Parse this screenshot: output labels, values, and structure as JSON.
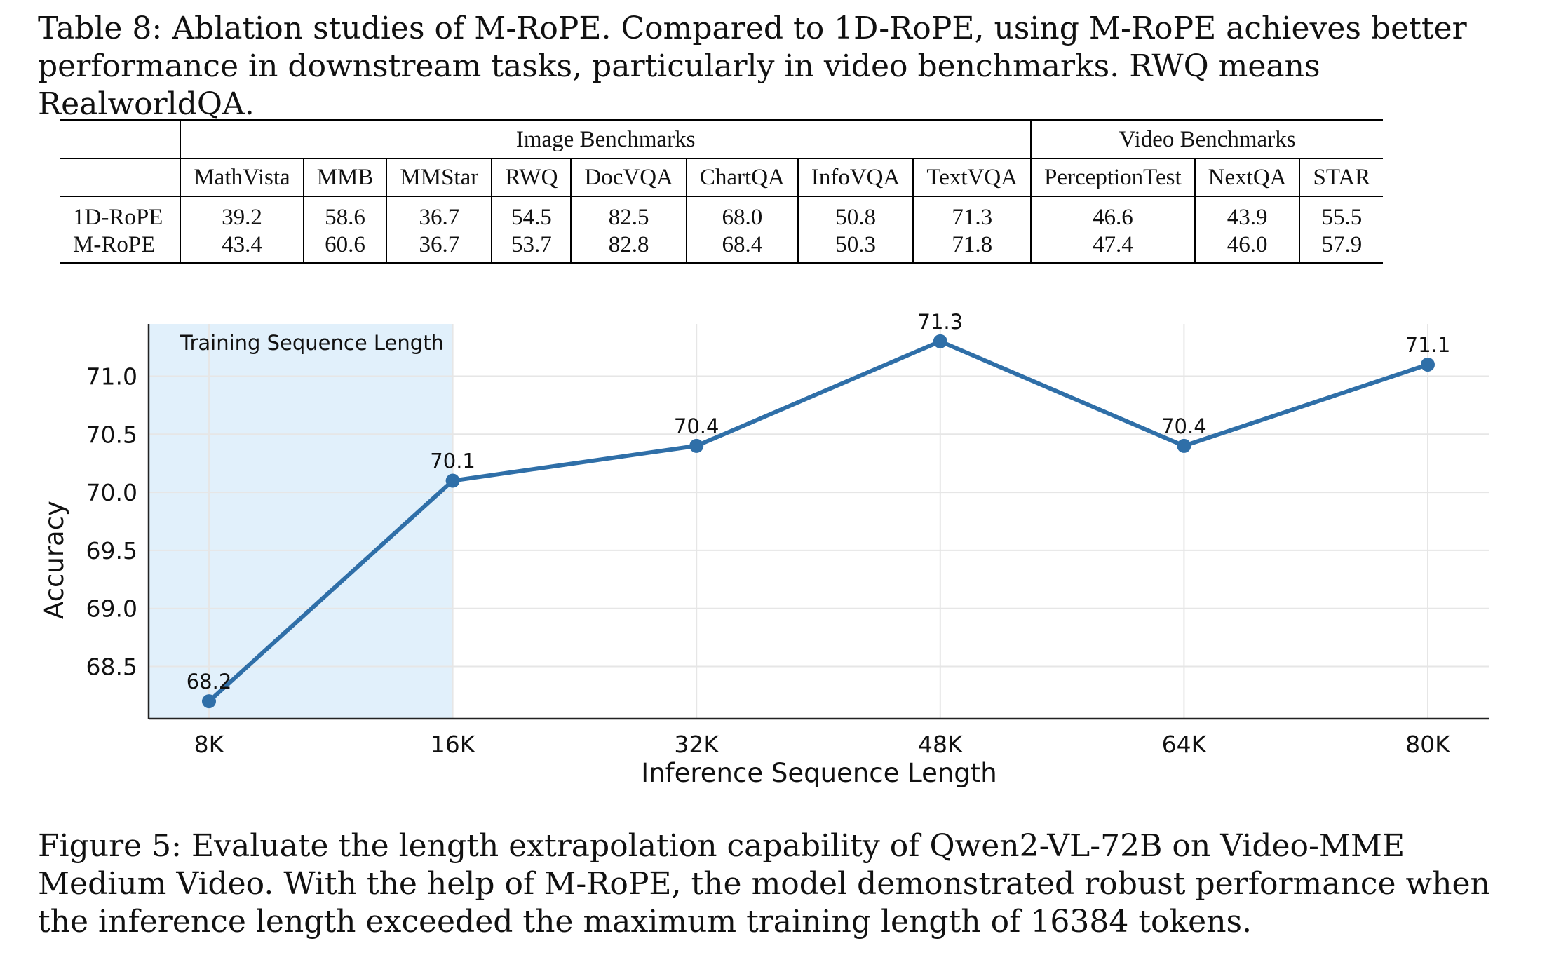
{
  "table_caption": {
    "label": "Table 8:",
    "text": "Ablation studies of M-RoPE. Compared to 1D-RoPE, using M-RoPE achieves better performance in downstream tasks, particularly in video benchmarks. RWQ means RealworldQA."
  },
  "table": {
    "group_headers": [
      "Image Benchmarks",
      "Video Benchmarks"
    ],
    "columns": [
      "MathVista",
      "MMB",
      "MMStar",
      "RWQ",
      "DocVQA",
      "ChartQA",
      "InfoVQA",
      "TextVQA",
      "PerceptionTest",
      "NextQA",
      "STAR"
    ],
    "rows": [
      {
        "method": "1D-RoPE",
        "values": [
          "39.2",
          "58.6",
          "36.7",
          "54.5",
          "82.5",
          "68.0",
          "50.8",
          "71.3",
          "46.6",
          "43.9",
          "55.5"
        ],
        "bold": [
          false,
          false,
          true,
          true,
          false,
          false,
          true,
          false,
          false,
          false,
          false
        ]
      },
      {
        "method": "M-RoPE",
        "values": [
          "43.4",
          "60.6",
          "36.7",
          "53.7",
          "82.8",
          "68.4",
          "50.3",
          "71.8",
          "47.4",
          "46.0",
          "57.9"
        ],
        "bold": [
          true,
          true,
          true,
          false,
          true,
          true,
          false,
          true,
          true,
          true,
          true
        ]
      }
    ]
  },
  "chart_data": {
    "type": "line",
    "categories": [
      "8K",
      "16K",
      "32K",
      "48K",
      "64K",
      "80K"
    ],
    "series": [
      {
        "values": [
          68.2,
          70.1,
          70.4,
          71.3,
          70.4,
          71.1
        ]
      }
    ],
    "data_labels": [
      "68.2",
      "70.1",
      "70.4",
      "71.3",
      "70.4",
      "71.1"
    ],
    "xlabel": "Inference Sequence Length",
    "ylabel": "Accuracy",
    "yticks": [
      "68.5",
      "69.0",
      "69.5",
      "70.0",
      "70.5",
      "71.0"
    ],
    "ylim": [
      68.05,
      71.45
    ],
    "grid": true,
    "shaded_region": {
      "label": "Training Sequence Length",
      "from": "8K",
      "to": "16K"
    },
    "colors": {
      "line": "#2f6fa8",
      "shade": "#e1f0fb",
      "grid": "#e6e6e6"
    }
  },
  "figure_caption": {
    "label": "Figure 5:",
    "text": "Evaluate the length extrapolation capability of Qwen2-VL-72B on Video-MME Medium Video. With the help of M-RoPE, the model demonstrated robust performance when the inference length exceeded the maximum training length of 16384 tokens."
  }
}
